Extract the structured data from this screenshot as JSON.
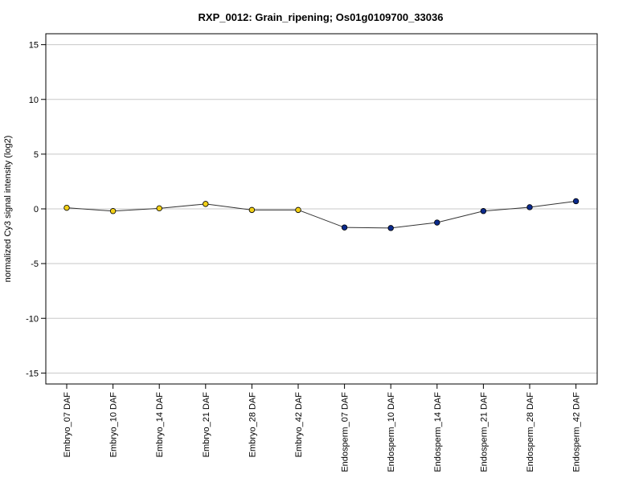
{
  "chart_data": {
    "type": "line",
    "title": "RXP_0012: Grain_ripening; Os01g0109700_33036",
    "xlabel": "",
    "ylabel": "normalized Cy3 signal intensity (log2)",
    "ylim": [
      -16,
      16
    ],
    "yticks": [
      -15,
      -10,
      -5,
      0,
      5,
      10,
      15
    ],
    "ytick_labels": [
      "-15",
      "-10",
      "-5",
      "0",
      "5",
      "10",
      "15"
    ],
    "grid": "horizontal",
    "categories": [
      "Embryo_07 DAF",
      "Embryo_10 DAF",
      "Embryo_14 DAF",
      "Embryo_21 DAF",
      "Embryo_28 DAF",
      "Embryo_42 DAF",
      "Endosperm_07 DAF",
      "Endosperm_10 DAF",
      "Endosperm_14 DAF",
      "Endosperm_21 DAF",
      "Endosperm_28 DAF",
      "Endosperm_42 DAF"
    ],
    "series": [
      {
        "values": [
          0.1,
          -0.2,
          0.05,
          0.45,
          -0.1,
          -0.1,
          -1.7,
          -1.75,
          -1.25,
          -0.2,
          0.15,
          0.7
        ],
        "point_colors": [
          "#f2d017",
          "#f2d017",
          "#f2d017",
          "#f2d017",
          "#f2d017",
          "#f2d017",
          "#0b2a8c",
          "#0b2a8c",
          "#0b2a8c",
          "#0b2a8c",
          "#0b2a8c",
          "#0b2a8c"
        ],
        "line_color": "#333333"
      }
    ]
  }
}
